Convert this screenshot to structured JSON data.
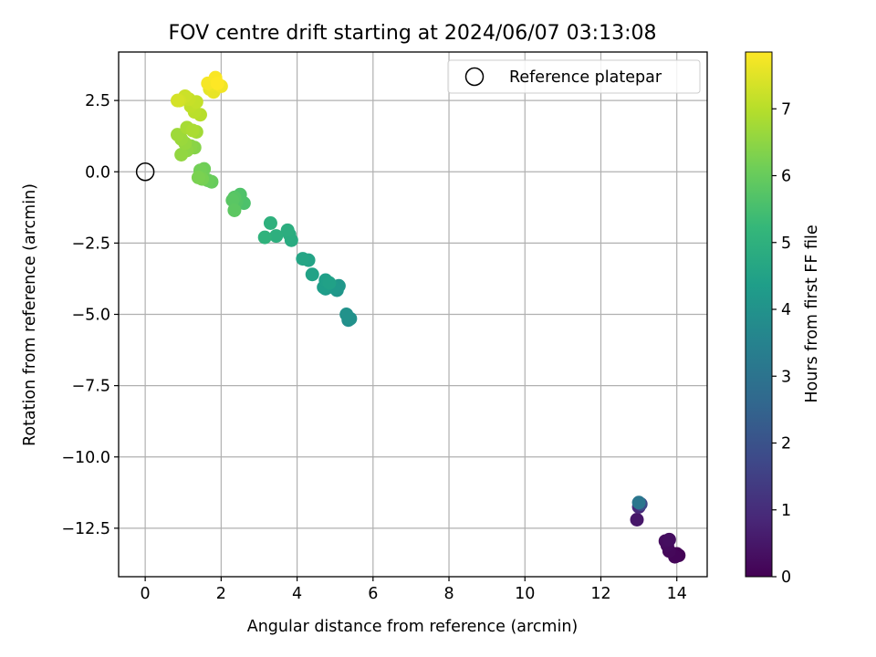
{
  "chart_data": {
    "type": "scatter",
    "title": "FOV centre drift starting at 2024/06/07 03:13:08",
    "xlabel": "Angular distance from reference (arcmin)",
    "ylabel": "Rotation from reference (arcmin)",
    "xlim": [
      -0.7,
      14.8
    ],
    "ylim": [
      -14.2,
      4.2
    ],
    "xticks": [
      0,
      2,
      4,
      6,
      8,
      10,
      12,
      14
    ],
    "xtick_labels": [
      "0",
      "2",
      "4",
      "6",
      "8",
      "10",
      "12",
      "14"
    ],
    "yticks": [
      2.5,
      0.0,
      -2.5,
      -5.0,
      -7.5,
      -10.0,
      -12.5
    ],
    "ytick_labels": [
      "2.5",
      "0.0",
      "−2.5",
      "−5.0",
      "−7.5",
      "−10.0",
      "−12.5"
    ],
    "grid": true,
    "legend": {
      "position": "top-right",
      "entries": [
        {
          "label": "Reference platepar",
          "marker": "open-circle",
          "color": "#000000"
        }
      ]
    },
    "reference_point": {
      "x": 0,
      "y": 0
    },
    "colorbar": {
      "label": "Hours from first FF file",
      "colormap": "viridis",
      "range": [
        0,
        7.85
      ],
      "ticks": [
        0,
        1,
        2,
        3,
        4,
        5,
        6,
        7
      ],
      "tick_labels": [
        "0",
        "1",
        "2",
        "3",
        "4",
        "5",
        "6",
        "7"
      ]
    },
    "series": [
      {
        "color_by": "hours",
        "points": [
          {
            "x": 14.0,
            "y": -13.4,
            "c": 0.0
          },
          {
            "x": 14.05,
            "y": -13.45,
            "c": 0.05
          },
          {
            "x": 13.95,
            "y": -13.5,
            "c": 0.1
          },
          {
            "x": 13.8,
            "y": -13.3,
            "c": 0.15
          },
          {
            "x": 13.75,
            "y": -13.1,
            "c": 0.2
          },
          {
            "x": 13.7,
            "y": -12.95,
            "c": 0.25
          },
          {
            "x": 13.8,
            "y": -12.9,
            "c": 0.3
          },
          {
            "x": 12.95,
            "y": -12.2,
            "c": 0.5
          },
          {
            "x": 13.0,
            "y": -11.75,
            "c": 0.9
          },
          {
            "x": 13.05,
            "y": -11.65,
            "c": 1.8
          },
          {
            "x": 13.0,
            "y": -11.6,
            "c": 3.1
          },
          {
            "x": 5.35,
            "y": -5.2,
            "c": 3.9
          },
          {
            "x": 5.4,
            "y": -5.15,
            "c": 3.95
          },
          {
            "x": 5.3,
            "y": -5.0,
            "c": 4.0
          },
          {
            "x": 5.05,
            "y": -4.15,
            "c": 4.1
          },
          {
            "x": 5.1,
            "y": -4.0,
            "c": 4.15
          },
          {
            "x": 4.95,
            "y": -4.05,
            "c": 4.2
          },
          {
            "x": 4.75,
            "y": -4.1,
            "c": 4.25
          },
          {
            "x": 4.8,
            "y": -3.95,
            "c": 4.3
          },
          {
            "x": 4.7,
            "y": -4.05,
            "c": 4.35
          },
          {
            "x": 4.75,
            "y": -3.8,
            "c": 4.4
          },
          {
            "x": 4.85,
            "y": -3.9,
            "c": 4.45
          },
          {
            "x": 4.4,
            "y": -3.6,
            "c": 4.5
          },
          {
            "x": 4.3,
            "y": -3.1,
            "c": 4.55
          },
          {
            "x": 4.15,
            "y": -3.05,
            "c": 4.6
          },
          {
            "x": 3.85,
            "y": -2.4,
            "c": 4.8
          },
          {
            "x": 3.8,
            "y": -2.2,
            "c": 4.85
          },
          {
            "x": 3.75,
            "y": -2.05,
            "c": 4.9
          },
          {
            "x": 3.45,
            "y": -2.25,
            "c": 4.95
          },
          {
            "x": 3.3,
            "y": -1.8,
            "c": 5.0
          },
          {
            "x": 3.15,
            "y": -2.3,
            "c": 5.05
          },
          {
            "x": 2.6,
            "y": -1.1,
            "c": 5.6
          },
          {
            "x": 2.5,
            "y": -0.8,
            "c": 5.65
          },
          {
            "x": 2.4,
            "y": -1.05,
            "c": 5.7
          },
          {
            "x": 2.35,
            "y": -0.9,
            "c": 5.75
          },
          {
            "x": 2.3,
            "y": -1.0,
            "c": 5.8
          },
          {
            "x": 2.35,
            "y": -1.35,
            "c": 5.85
          },
          {
            "x": 1.75,
            "y": -0.35,
            "c": 6.0
          },
          {
            "x": 1.65,
            "y": -0.3,
            "c": 6.05
          },
          {
            "x": 1.55,
            "y": 0.1,
            "c": 6.1
          },
          {
            "x": 1.45,
            "y": 0.05,
            "c": 6.15
          },
          {
            "x": 1.5,
            "y": -0.25,
            "c": 6.2
          },
          {
            "x": 1.4,
            "y": -0.2,
            "c": 6.25
          },
          {
            "x": 1.3,
            "y": 0.85,
            "c": 6.4
          },
          {
            "x": 1.2,
            "y": 0.9,
            "c": 6.45
          },
          {
            "x": 1.1,
            "y": 0.75,
            "c": 6.5
          },
          {
            "x": 0.95,
            "y": 0.6,
            "c": 6.55
          },
          {
            "x": 1.05,
            "y": 1.0,
            "c": 6.6
          },
          {
            "x": 0.95,
            "y": 1.15,
            "c": 6.65
          },
          {
            "x": 0.85,
            "y": 1.3,
            "c": 6.7
          },
          {
            "x": 1.35,
            "y": 1.4,
            "c": 6.75
          },
          {
            "x": 1.1,
            "y": 1.55,
            "c": 6.8
          },
          {
            "x": 1.25,
            "y": 1.45,
            "c": 6.85
          },
          {
            "x": 1.45,
            "y": 2.0,
            "c": 7.0
          },
          {
            "x": 1.3,
            "y": 2.1,
            "c": 7.05
          },
          {
            "x": 1.2,
            "y": 2.3,
            "c": 7.1
          },
          {
            "x": 1.35,
            "y": 2.45,
            "c": 7.15
          },
          {
            "x": 1.15,
            "y": 2.55,
            "c": 7.2
          },
          {
            "x": 1.05,
            "y": 2.65,
            "c": 7.25
          },
          {
            "x": 0.9,
            "y": 2.5,
            "c": 7.3
          },
          {
            "x": 0.85,
            "y": 2.5,
            "c": 7.35
          },
          {
            "x": 1.7,
            "y": 2.9,
            "c": 7.55
          },
          {
            "x": 1.8,
            "y": 2.8,
            "c": 7.6
          },
          {
            "x": 1.75,
            "y": 3.05,
            "c": 7.65
          },
          {
            "x": 2.0,
            "y": 3.0,
            "c": 7.7
          },
          {
            "x": 1.65,
            "y": 3.1,
            "c": 7.75
          },
          {
            "x": 1.85,
            "y": 3.3,
            "c": 7.8
          },
          {
            "x": 1.9,
            "y": 3.1,
            "c": 7.85
          }
        ]
      }
    ]
  }
}
